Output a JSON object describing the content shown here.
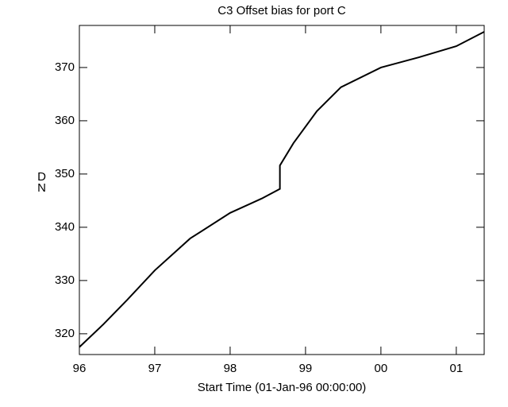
{
  "chart_data": {
    "type": "line",
    "title": "C3 Offset bias for port C",
    "x_label": "Start Time (01-Jan-96 00:00:00)",
    "y_label": "DN",
    "series": [
      {
        "name": "C3",
        "color": "#000000",
        "x": [
          1996.0,
          1996.32,
          1996.63,
          1997.0,
          1997.47,
          1998.0,
          1998.42,
          1998.66,
          1998.66,
          1998.84,
          1999.15,
          1999.47,
          2000.0,
          2000.5,
          2001.0,
          2001.37
        ],
        "values": [
          317.5,
          321.8,
          326.3,
          331.9,
          337.9,
          342.7,
          345.4,
          347.2,
          351.6,
          355.8,
          361.8,
          366.3,
          370.0,
          371.9,
          374.0,
          376.7
        ]
      }
    ],
    "xlim": [
      1996,
      2001.37
    ],
    "xticks": [
      {
        "value": 1996,
        "label": "96"
      },
      {
        "value": 1997,
        "label": "97"
      },
      {
        "value": 1998,
        "label": "98"
      },
      {
        "value": 1999,
        "label": "99"
      },
      {
        "value": 2000,
        "label": "00"
      },
      {
        "value": 2001,
        "label": "01"
      }
    ],
    "ylim": [
      316.1,
      377.9
    ],
    "yticks": [
      320,
      330,
      340,
      350,
      360,
      370
    ]
  }
}
